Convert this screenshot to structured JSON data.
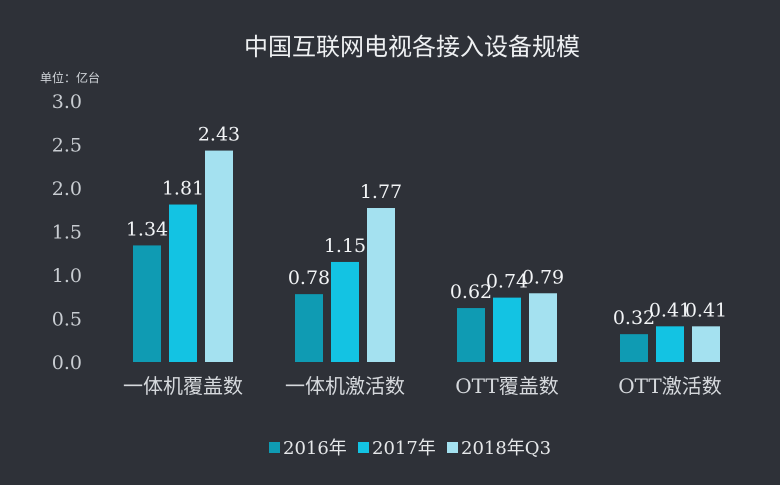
{
  "chart_data": {
    "type": "bar",
    "title": "中国互联网电视各接入设备规模",
    "unit_label": "单位：亿台",
    "categories": [
      "一体机覆盖数",
      "一体机激活数",
      "OTT覆盖数",
      "OTT激活数"
    ],
    "series": [
      {
        "name": "2016年",
        "color": "#0f9bb3",
        "values": [
          1.34,
          0.78,
          0.62,
          0.32
        ]
      },
      {
        "name": "2017年",
        "color": "#13c3e3",
        "values": [
          1.81,
          1.15,
          0.74,
          0.41
        ]
      },
      {
        "name": "2018年Q3",
        "color": "#a4e1f0",
        "values": [
          2.43,
          1.77,
          0.79,
          0.41
        ]
      }
    ],
    "data_labels": [
      [
        "1.34",
        "0.78",
        "0.62",
        "0.32"
      ],
      [
        "1.81",
        "1.15",
        "0.74",
        "0.41"
      ],
      [
        "2.43",
        "1.77",
        "0.79",
        "0.41"
      ]
    ],
    "yticks": [
      "0.0",
      "0.5",
      "1.0",
      "1.5",
      "2.0",
      "2.5",
      "3.0"
    ],
    "ylim": [
      0,
      3.0
    ],
    "grid": false,
    "legend_position": "bottom"
  }
}
